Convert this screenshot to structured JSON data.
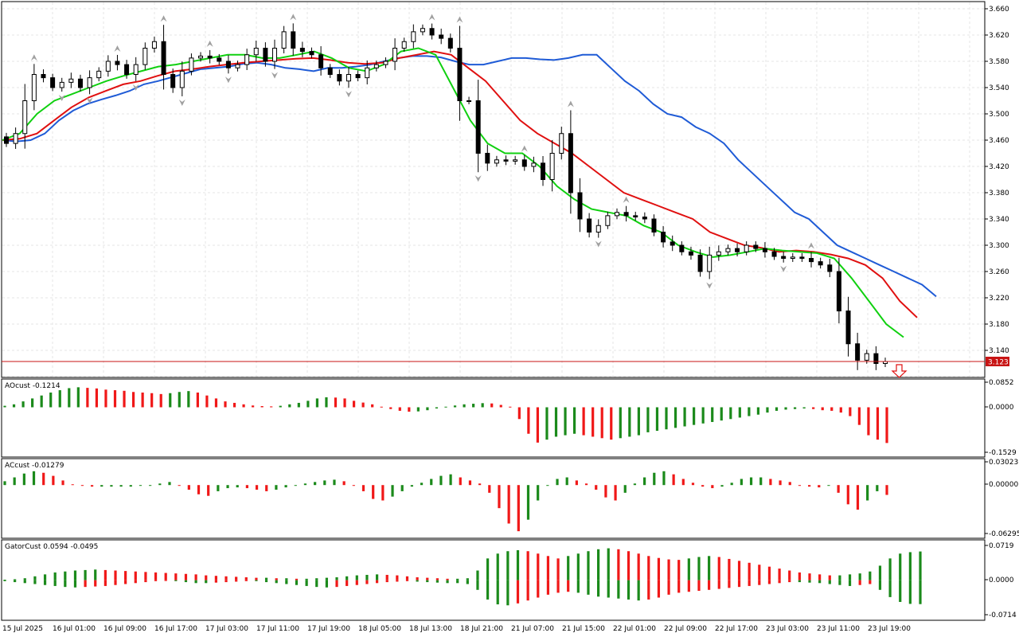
{
  "colors": {
    "background": "#ffffff",
    "grid": "#e6e6e6",
    "bull_body": "#ffffff",
    "bear_body": "#000000",
    "alligator_jaw": "#1f5bd6",
    "alligator_teeth": "#e01010",
    "alligator_lips": "#10d010",
    "osc_up": "#1b8a1b",
    "osc_down": "#f01818",
    "price_line": "#c81414",
    "fractal": "#a0a0a0"
  },
  "main": {
    "current_price_label": "3.123",
    "price_ticks": [
      "3.660",
      "3.620",
      "3.580",
      "3.540",
      "3.500",
      "3.460",
      "3.420",
      "3.380",
      "3.340",
      "3.300",
      "3.260",
      "3.220",
      "3.180",
      "3.140"
    ],
    "arrow_icon": "down-arrow-icon"
  },
  "panels": {
    "ao": {
      "title": "AOcust -0.1214",
      "ticks": [
        "0.0852",
        "0.0000",
        "-0.1529"
      ]
    },
    "ac": {
      "title": "ACcust -0.01279",
      "ticks": [
        "0.03023",
        "0.00000",
        "-0.06295"
      ]
    },
    "gator": {
      "title": "GatorCust 0.0594 -0.0495",
      "ticks": [
        "0.0719",
        "0.0000",
        "-0.0714"
      ]
    }
  },
  "time_axis": [
    "15 Jul 2025",
    "16 Jul 01:00",
    "16 Jul 09:00",
    "16 Jul 17:00",
    "17 Jul 03:00",
    "17 Jul 11:00",
    "17 Jul 19:00",
    "18 Jul 05:00",
    "18 Jul 13:00",
    "18 Jul 21:00",
    "21 Jul 07:00",
    "21 Jul 15:00",
    "22 Jul 01:00",
    "22 Jul 09:00",
    "22 Jul 17:00",
    "23 Jul 03:00",
    "23 Jul 11:00",
    "23 Jul 19:00"
  ],
  "chart_data": [
    {
      "type": "candlestick",
      "title": "",
      "ylim": [
        3.12,
        3.66
      ],
      "y_ticks": [
        3.66,
        3.62,
        3.58,
        3.54,
        3.5,
        3.46,
        3.42,
        3.38,
        3.34,
        3.3,
        3.26,
        3.22,
        3.18,
        3.14
      ],
      "current_price": 3.123,
      "close_path": [
        3.455,
        3.47,
        3.52,
        3.56,
        3.555,
        3.54,
        3.548,
        3.553,
        3.54,
        3.555,
        3.565,
        3.58,
        3.575,
        3.56,
        3.575,
        3.6,
        3.61,
        3.56,
        3.54,
        3.565,
        3.585,
        3.588,
        3.585,
        3.58,
        3.57,
        3.575,
        3.59,
        3.6,
        3.58,
        3.6,
        3.625,
        3.6,
        3.595,
        3.59,
        3.57,
        3.56,
        3.55,
        3.56,
        3.555,
        3.57,
        3.575,
        3.58,
        3.6,
        3.61,
        3.625,
        3.63,
        3.62,
        3.615,
        3.6,
        3.52,
        3.52,
        3.44,
        3.425,
        3.43,
        3.428,
        3.43,
        3.42,
        3.425,
        3.4,
        3.44,
        3.47,
        3.38,
        3.34,
        3.32,
        3.33,
        3.345,
        3.35,
        3.345,
        3.343,
        3.34,
        3.32,
        3.305,
        3.3,
        3.29,
        3.285,
        3.26,
        3.285,
        3.29,
        3.295,
        3.29,
        3.3,
        3.295,
        3.29,
        3.283,
        3.28,
        3.282,
        3.28,
        3.275,
        3.27,
        3.26,
        3.2,
        3.15,
        3.125,
        3.135,
        3.12,
        3.123
      ],
      "series": [
        {
          "name": "",
          "color_key": "alligator_jaw",
          "values": [
            3.46,
            3.458,
            3.46,
            3.47,
            3.49,
            3.505,
            3.515,
            3.522,
            3.528,
            3.535,
            3.545,
            3.55,
            3.556,
            3.562,
            3.568,
            3.57,
            3.572,
            3.576,
            3.578,
            3.575,
            3.57,
            3.568,
            3.565,
            3.57,
            3.57,
            3.572,
            3.575,
            3.58,
            3.585,
            3.588,
            3.588,
            3.586,
            3.58,
            3.575,
            3.575,
            3.58,
            3.585,
            3.585,
            3.583,
            3.582,
            3.585,
            3.59,
            3.59,
            3.57,
            3.55,
            3.535,
            3.515,
            3.5,
            3.495,
            3.48,
            3.47,
            3.455,
            3.43,
            3.41,
            3.39,
            3.37,
            3.35,
            3.34,
            3.32,
            3.3,
            3.29,
            3.28,
            3.27,
            3.26,
            3.25,
            3.24,
            3.222
          ]
        },
        {
          "name": "",
          "color_key": "alligator_teeth",
          "values": [
            3.46,
            3.462,
            3.47,
            3.49,
            3.51,
            3.525,
            3.535,
            3.545,
            3.55,
            3.558,
            3.565,
            3.568,
            3.572,
            3.575,
            3.578,
            3.58,
            3.582,
            3.584,
            3.585,
            3.582,
            3.578,
            3.576,
            3.578,
            3.585,
            3.59,
            3.595,
            3.59,
            3.57,
            3.55,
            3.52,
            3.49,
            3.47,
            3.455,
            3.44,
            3.42,
            3.4,
            3.38,
            3.37,
            3.36,
            3.35,
            3.34,
            3.32,
            3.31,
            3.3,
            3.296,
            3.29,
            3.292,
            3.29,
            3.286,
            3.28,
            3.27,
            3.25,
            3.215,
            3.19
          ]
        },
        {
          "name": "",
          "color_key": "alligator_lips",
          "values": [
            3.46,
            3.47,
            3.5,
            3.52,
            3.53,
            3.54,
            3.55,
            3.558,
            3.565,
            3.572,
            3.575,
            3.58,
            3.585,
            3.59,
            3.59,
            3.585,
            3.585,
            3.59,
            3.595,
            3.585,
            3.57,
            3.565,
            3.575,
            3.595,
            3.6,
            3.59,
            3.54,
            3.49,
            3.455,
            3.44,
            3.44,
            3.42,
            3.39,
            3.37,
            3.355,
            3.35,
            3.345,
            3.33,
            3.32,
            3.3,
            3.29,
            3.282,
            3.285,
            3.29,
            3.295,
            3.292,
            3.29,
            3.288,
            3.28,
            3.25,
            3.215,
            3.18,
            3.16
          ]
        }
      ]
    },
    {
      "type": "bar",
      "title": "AOcust -0.1214",
      "ylim": [
        -0.1529,
        0.0852
      ],
      "values": [
        0.005,
        0.01,
        0.02,
        0.03,
        0.04,
        0.05,
        0.058,
        0.065,
        0.068,
        0.066,
        0.064,
        0.06,
        0.058,
        0.056,
        0.052,
        0.05,
        0.048,
        0.045,
        0.048,
        0.052,
        0.055,
        0.05,
        0.04,
        0.03,
        0.02,
        0.015,
        0.01,
        0.006,
        0.004,
        0.003,
        0.005,
        0.01,
        0.015,
        0.022,
        0.03,
        0.034,
        0.033,
        0.03,
        0.022,
        0.016,
        0.01,
        0.002,
        -0.006,
        -0.012,
        -0.015,
        -0.014,
        -0.01,
        -0.004,
        0.002,
        0.006,
        0.01,
        0.012,
        0.014,
        0.013,
        0.008,
        0.002,
        -0.04,
        -0.09,
        -0.12,
        -0.11,
        -0.1,
        -0.095,
        -0.09,
        -0.095,
        -0.1,
        -0.105,
        -0.11,
        -0.105,
        -0.1,
        -0.095,
        -0.085,
        -0.08,
        -0.075,
        -0.07,
        -0.065,
        -0.06,
        -0.055,
        -0.05,
        -0.045,
        -0.04,
        -0.035,
        -0.03,
        -0.025,
        -0.018,
        -0.012,
        -0.008,
        -0.006,
        -0.004,
        -0.006,
        -0.01,
        -0.012,
        -0.018,
        -0.03,
        -0.06,
        -0.095,
        -0.11,
        -0.1214
      ]
    },
    {
      "type": "bar",
      "title": "ACcust -0.01279",
      "ylim": [
        -0.06295,
        0.03023
      ],
      "values": [
        0.005,
        0.01,
        0.015,
        0.018,
        0.016,
        0.012,
        0.006,
        0.001,
        -0.001,
        -0.002,
        -0.002,
        -0.002,
        -0.002,
        -0.002,
        -0.001,
        0.0,
        0.002,
        0.004,
        0.0,
        -0.006,
        -0.012,
        -0.014,
        -0.008,
        -0.004,
        -0.003,
        -0.004,
        -0.006,
        -0.008,
        -0.006,
        -0.003,
        0.0,
        0.002,
        0.004,
        0.006,
        0.007,
        0.005,
        0.0,
        -0.008,
        -0.018,
        -0.02,
        -0.015,
        -0.008,
        -0.002,
        0.003,
        0.008,
        0.012,
        0.014,
        0.01,
        0.006,
        0.002,
        -0.01,
        -0.03,
        -0.05,
        -0.06,
        -0.045,
        -0.02,
        0.0,
        0.008,
        0.01,
        0.006,
        0.002,
        -0.006,
        -0.016,
        -0.02,
        -0.01,
        0.002,
        0.01,
        0.016,
        0.018,
        0.014,
        0.008,
        0.003,
        -0.002,
        -0.004,
        -0.002,
        0.003,
        0.008,
        0.01,
        0.01,
        0.008,
        0.006,
        0.004,
        0.0,
        -0.002,
        -0.003,
        -0.001,
        -0.01,
        -0.025,
        -0.032,
        -0.02,
        -0.008,
        -0.01279
      ]
    },
    {
      "type": "bar",
      "title": "GatorCust 0.0594 -0.0495",
      "ylim": [
        -0.0714,
        0.0719
      ],
      "upper_values": [
        0.001,
        0.002,
        0.004,
        0.008,
        0.012,
        0.016,
        0.018,
        0.02,
        0.021,
        0.022,
        0.021,
        0.02,
        0.019,
        0.018,
        0.017,
        0.016,
        0.015,
        0.014,
        0.013,
        0.012,
        0.01,
        0.009,
        0.008,
        0.007,
        0.006,
        0.005,
        0.005,
        0.004,
        0.004,
        0.003,
        0.003,
        0.004,
        0.005,
        0.006,
        0.008,
        0.01,
        0.011,
        0.012,
        0.011,
        0.01,
        0.008,
        0.006,
        0.005,
        0.004,
        0.003,
        0.003,
        0.004,
        0.02,
        0.045,
        0.055,
        0.06,
        0.062,
        0.06,
        0.055,
        0.05,
        0.045,
        0.05,
        0.055,
        0.06,
        0.064,
        0.066,
        0.064,
        0.06,
        0.055,
        0.05,
        0.046,
        0.043,
        0.042,
        0.045,
        0.048,
        0.05,
        0.048,
        0.044,
        0.04,
        0.036,
        0.032,
        0.028,
        0.024,
        0.02,
        0.016,
        0.014,
        0.012,
        0.01,
        0.01,
        0.012,
        0.014,
        0.018,
        0.03,
        0.045,
        0.055,
        0.058,
        0.0594
      ],
      "lower_values": [
        0.002,
        0.004,
        0.006,
        0.008,
        0.01,
        0.012,
        0.014,
        0.015,
        0.014,
        0.013,
        0.012,
        0.01,
        0.008,
        0.006,
        0.004,
        0.002,
        0.001,
        0.002,
        0.004,
        0.006,
        0.006,
        0.005,
        0.004,
        0.003,
        0.002,
        0.002,
        0.004,
        0.006,
        0.008,
        0.01,
        0.012,
        0.014,
        0.015,
        0.014,
        0.012,
        0.01,
        0.008,
        0.006,
        0.004,
        0.003,
        0.002,
        0.003,
        0.004,
        0.005,
        0.006,
        0.006,
        0.008,
        0.02,
        0.04,
        0.05,
        0.052,
        0.048,
        0.042,
        0.036,
        0.03,
        0.026,
        0.024,
        0.026,
        0.03,
        0.034,
        0.036,
        0.038,
        0.04,
        0.042,
        0.04,
        0.036,
        0.03,
        0.026,
        0.024,
        0.022,
        0.02,
        0.018,
        0.016,
        0.014,
        0.012,
        0.01,
        0.008,
        0.006,
        0.004,
        0.004,
        0.005,
        0.006,
        0.008,
        0.01,
        0.012,
        0.01,
        0.008,
        0.02,
        0.035,
        0.045,
        0.049,
        0.0495
      ]
    }
  ]
}
